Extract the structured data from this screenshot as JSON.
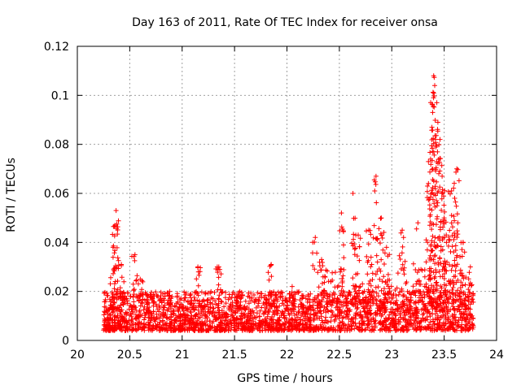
{
  "chart_data": {
    "type": "scatter",
    "title": "Day 163 of 2011, Rate Of TEC Index for receiver onsa",
    "xlabel": "GPS time / hours",
    "ylabel": "ROTI / TECUs",
    "xlim": [
      20,
      24
    ],
    "ylim": [
      0,
      0.12
    ],
    "grid": true,
    "xticks": [
      20,
      20.5,
      21,
      21.5,
      22,
      22.5,
      23,
      23.5,
      24
    ],
    "xtick_labels": [
      "20",
      "20.5",
      "21",
      "21.5",
      "22",
      "22.5",
      "23",
      "23.5",
      "24"
    ],
    "yticks": [
      0,
      0.02,
      0.04,
      0.06,
      0.08,
      0.1,
      0.12
    ],
    "ytick_labels": [
      "0",
      "0.02",
      "0.04",
      "0.06",
      "0.08",
      "0.1",
      "0.12"
    ],
    "marker": "+",
    "color": "#ff0000",
    "series": [
      {
        "name": "ROTI",
        "x_range": [
          20.25,
          23.78
        ],
        "baseline_band": [
          0.004,
          0.02
        ],
        "peaks": [
          {
            "x": 20.37,
            "y": 0.053
          },
          {
            "x": 20.36,
            "y": 0.047
          },
          {
            "x": 20.34,
            "y": 0.038
          },
          {
            "x": 20.42,
            "y": 0.031
          },
          {
            "x": 20.55,
            "y": 0.035
          },
          {
            "x": 20.6,
            "y": 0.025
          },
          {
            "x": 21.15,
            "y": 0.03
          },
          {
            "x": 21.35,
            "y": 0.03
          },
          {
            "x": 21.55,
            "y": 0.02
          },
          {
            "x": 21.85,
            "y": 0.031
          },
          {
            "x": 22.05,
            "y": 0.022
          },
          {
            "x": 22.27,
            "y": 0.042
          },
          {
            "x": 22.33,
            "y": 0.033
          },
          {
            "x": 22.52,
            "y": 0.052
          },
          {
            "x": 22.63,
            "y": 0.06
          },
          {
            "x": 22.68,
            "y": 0.043
          },
          {
            "x": 22.78,
            "y": 0.045
          },
          {
            "x": 22.85,
            "y": 0.067
          },
          {
            "x": 22.9,
            "y": 0.05
          },
          {
            "x": 22.95,
            "y": 0.038
          },
          {
            "x": 23.1,
            "y": 0.045
          },
          {
            "x": 23.25,
            "y": 0.048
          },
          {
            "x": 23.35,
            "y": 0.064
          },
          {
            "x": 23.37,
            "y": 0.074
          },
          {
            "x": 23.39,
            "y": 0.093
          },
          {
            "x": 23.4,
            "y": 0.108
          },
          {
            "x": 23.41,
            "y": 0.104
          },
          {
            "x": 23.43,
            "y": 0.097
          },
          {
            "x": 23.44,
            "y": 0.089
          },
          {
            "x": 23.46,
            "y": 0.082
          },
          {
            "x": 23.48,
            "y": 0.067
          },
          {
            "x": 23.5,
            "y": 0.05
          },
          {
            "x": 23.52,
            "y": 0.043
          },
          {
            "x": 23.57,
            "y": 0.061
          },
          {
            "x": 23.6,
            "y": 0.058
          },
          {
            "x": 23.62,
            "y": 0.07
          },
          {
            "x": 23.68,
            "y": 0.04
          },
          {
            "x": 23.75,
            "y": 0.03
          }
        ]
      }
    ]
  }
}
